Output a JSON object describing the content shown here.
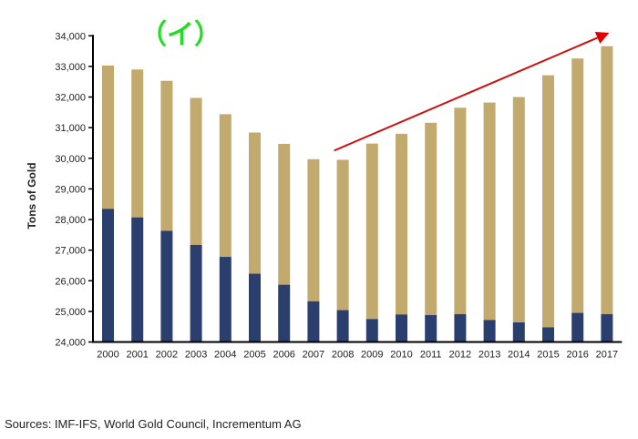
{
  "chart_data": {
    "type": "bar",
    "stacked": true,
    "title": "",
    "xlabel": "",
    "ylabel": "Tons of Gold",
    "ylim": [
      24000,
      34000
    ],
    "yticks": [
      24000,
      25000,
      26000,
      27000,
      28000,
      29000,
      30000,
      31000,
      32000,
      33000,
      34000
    ],
    "ytick_labels": [
      "24,000",
      "25,000",
      "26,000",
      "27,000",
      "28,000",
      "29,000",
      "30,000",
      "31,000",
      "32,000",
      "33,000",
      "34,000"
    ],
    "categories": [
      "2000",
      "2001",
      "2002",
      "2003",
      "2004",
      "2005",
      "2006",
      "2007",
      "2008",
      "2009",
      "2010",
      "2011",
      "2012",
      "2013",
      "2014",
      "2015",
      "2016",
      "2017"
    ],
    "series": [
      {
        "name": "lower",
        "color": "#2b3f6e",
        "top_values": [
          28350,
          28070,
          27630,
          27170,
          26780,
          26230,
          25870,
          25330,
          25040,
          24750,
          24900,
          24880,
          24910,
          24720,
          24640,
          24480,
          24950,
          24910
        ]
      },
      {
        "name": "upper",
        "color": "#c2aa6e",
        "top_values": [
          33030,
          32900,
          32530,
          31970,
          31440,
          30840,
          30470,
          29970,
          29950,
          30480,
          30800,
          31160,
          31650,
          31820,
          32000,
          32710,
          33260,
          33660
        ]
      }
    ],
    "grid": false,
    "legend": "none",
    "annotations": [
      {
        "type": "arrow",
        "color": "#cc1111",
        "from_category": "2008",
        "to_category": "2017",
        "from_value": 30250,
        "to_value": 34100
      },
      {
        "type": "text",
        "text": "（イ）",
        "color": "#22dd22"
      }
    ]
  },
  "footer": {
    "source": "Sources: IMF-IFS, World Gold Council, Incrementum AG"
  }
}
